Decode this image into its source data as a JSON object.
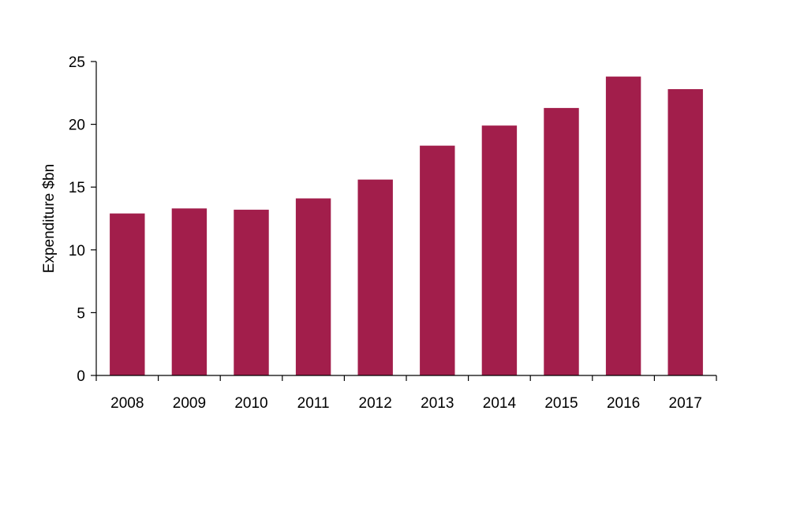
{
  "chart_data": {
    "type": "bar",
    "title": "",
    "xlabel": "",
    "ylabel": "Expenditure $bn",
    "categories": [
      "2008",
      "2009",
      "2010",
      "2011",
      "2012",
      "2013",
      "2014",
      "2015",
      "2016",
      "2017"
    ],
    "values": [
      12.9,
      13.3,
      13.2,
      14.1,
      15.6,
      18.3,
      19.9,
      21.3,
      23.8,
      22.8
    ],
    "ylim": [
      0,
      25
    ],
    "yticks": [
      "0",
      "5",
      "10",
      "15",
      "20",
      "25"
    ],
    "grid": false,
    "legend": "none",
    "bar_color": "#A21E4B"
  }
}
